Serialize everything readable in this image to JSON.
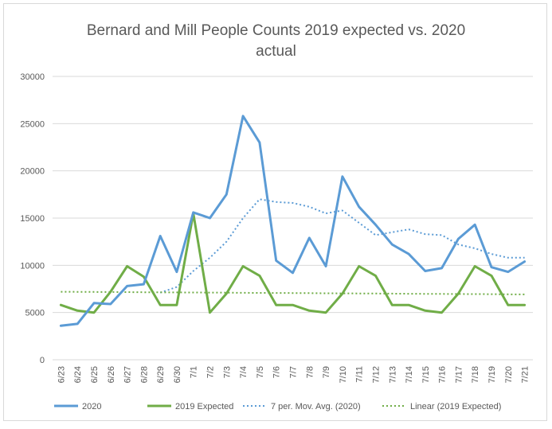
{
  "chart_data": {
    "type": "line",
    "title_line1": "Bernard and Mill People Counts 2019 expected vs. 2020",
    "title_line2": "actual",
    "xlabel": "",
    "ylabel": "",
    "ylim": [
      0,
      30000
    ],
    "yticks": [
      0,
      5000,
      10000,
      15000,
      20000,
      25000,
      30000
    ],
    "grid": true,
    "legend_position": "bottom",
    "categories": [
      "6/23",
      "6/24",
      "6/25",
      "6/26",
      "6/27",
      "6/28",
      "6/29",
      "6/30",
      "7/1",
      "7/2",
      "7/3",
      "7/4",
      "7/5",
      "7/6",
      "7/7",
      "7/8",
      "7/9",
      "7/10",
      "7/11",
      "7/12",
      "7/13",
      "7/14",
      "7/15",
      "7/16",
      "7/17",
      "7/18",
      "7/19",
      "7/20",
      "7/21"
    ],
    "series": [
      {
        "name": "2020",
        "color": "#5b9bd5",
        "style": "solid",
        "values": [
          3600,
          3800,
          6000,
          5900,
          7800,
          8000,
          13100,
          9300,
          15600,
          15000,
          17500,
          25800,
          23000,
          10500,
          9200,
          12900,
          9900,
          19400,
          16200,
          14300,
          12200,
          11200,
          9400,
          9700,
          12800,
          14300,
          9800,
          9300,
          10400
        ]
      },
      {
        "name": "2019 Expected",
        "color": "#70ad47",
        "style": "solid",
        "values": [
          5800,
          5200,
          5000,
          7200,
          9900,
          8800,
          5800,
          5800,
          15500,
          5000,
          7000,
          9900,
          8900,
          5800,
          5800,
          5200,
          5000,
          7000,
          9900,
          8900,
          5800,
          5800,
          5200,
          5000,
          7000,
          9900,
          8900,
          5800,
          5800
        ]
      },
      {
        "name": "7 per. Mov. Avg. (2020)",
        "color": "#5b9bd5",
        "style": "dotted",
        "values": [
          null,
          null,
          null,
          null,
          null,
          null,
          7100,
          7700,
          9400,
          10800,
          12500,
          15000,
          17000,
          16700,
          16600,
          16200,
          15500,
          15800,
          14500,
          13200,
          13500,
          13800,
          13300,
          13200,
          12200,
          11800,
          11200,
          10800,
          10800
        ]
      },
      {
        "name": "Linear (2019 Expected)",
        "color": "#70ad47",
        "style": "dotted",
        "values": [
          7200,
          7190,
          7180,
          7170,
          7160,
          7150,
          7140,
          7130,
          7120,
          7110,
          7100,
          7090,
          7080,
          7070,
          7060,
          7050,
          7040,
          7030,
          7020,
          7010,
          7000,
          6990,
          6980,
          6970,
          6960,
          6950,
          6940,
          6930,
          6920
        ]
      }
    ]
  }
}
